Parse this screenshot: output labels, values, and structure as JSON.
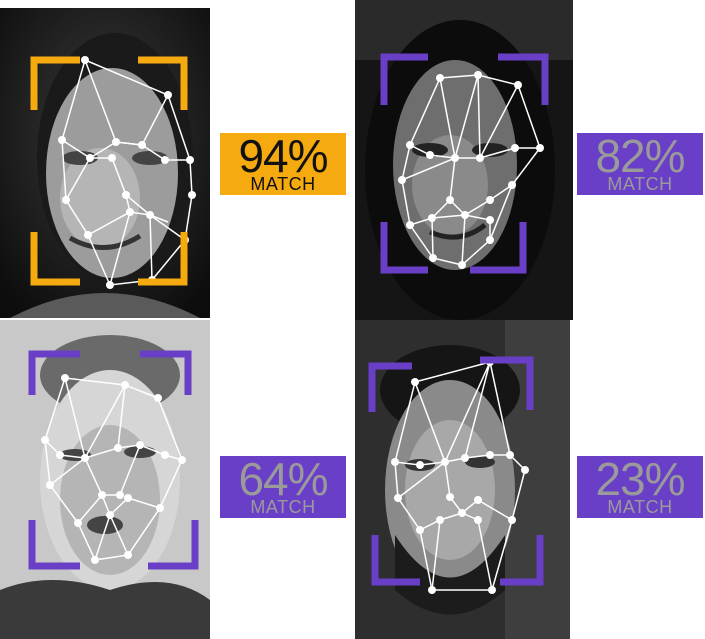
{
  "colors": {
    "gold": "#f5aa10",
    "purple": "#6a3fc8",
    "badge_text_on_gold": "#111111",
    "badge_text_on_purple": "#9a9a9a",
    "mesh": "#ffffff"
  },
  "faces": [
    {
      "id": "face-1",
      "match_percent": "94%",
      "match_label": "MATCH",
      "accent": "gold"
    },
    {
      "id": "face-2",
      "match_percent": "82%",
      "match_label": "MATCH",
      "accent": "purple"
    },
    {
      "id": "face-3",
      "match_percent": "64%",
      "match_label": "MATCH",
      "accent": "purple"
    },
    {
      "id": "face-4",
      "match_percent": "23%",
      "match_label": "MATCH",
      "accent": "purple"
    }
  ]
}
